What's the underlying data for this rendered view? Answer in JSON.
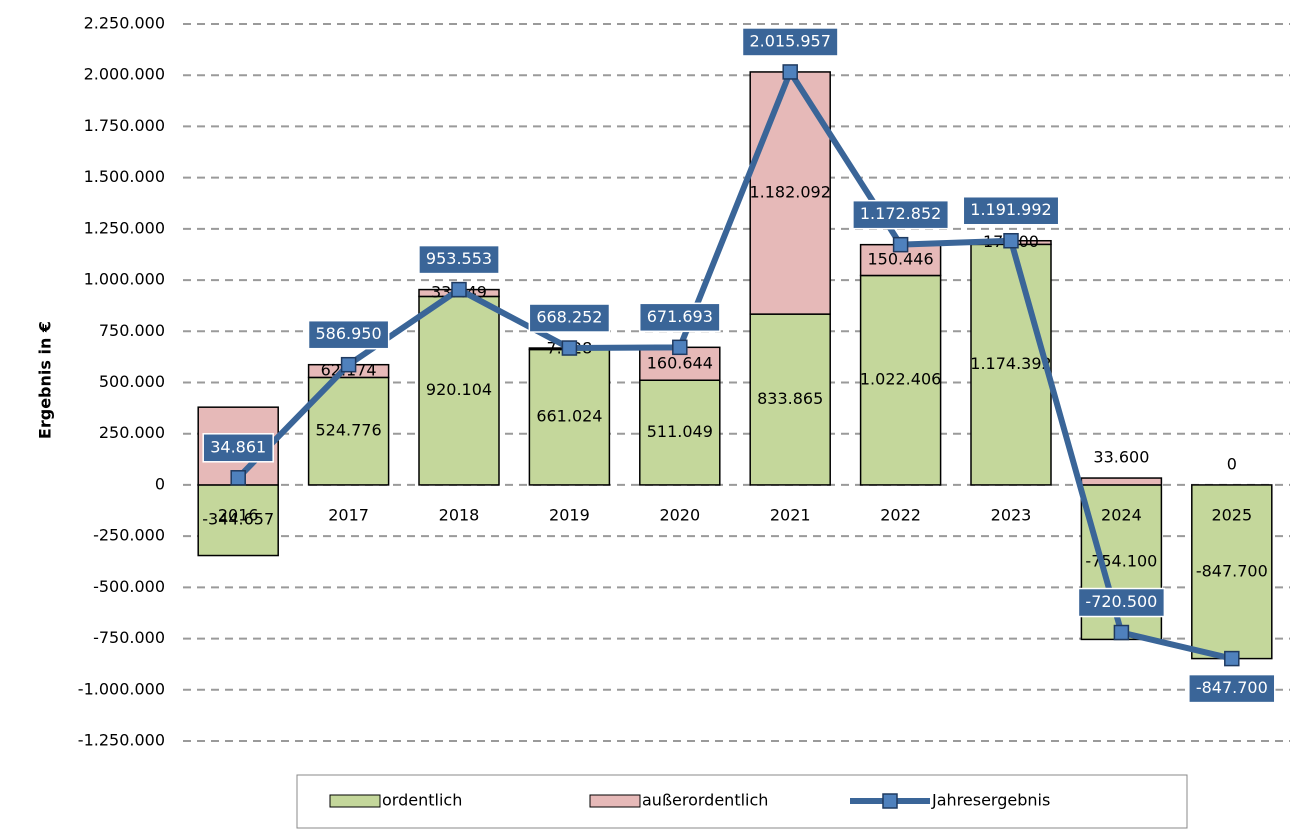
{
  "chart_data": {
    "type": "bar",
    "y_label": "Ergebnis in €",
    "categories": [
      "2016",
      "2017",
      "2018",
      "2019",
      "2020",
      "2021",
      "2022",
      "2023",
      "2024",
      "2025"
    ],
    "series": [
      {
        "name": "ordentlich",
        "type": "bar",
        "color": "#c4d79b",
        "values": [
          -344657,
          524776,
          920104,
          661024,
          511049,
          833865,
          1022406,
          1174392,
          -754100,
          -847700
        ],
        "value_labels": [
          "-344.657",
          "524.776",
          "920.104",
          "661.024",
          "511.049",
          "833.865",
          "1.022.406",
          "1.174.392",
          "-754.100",
          "-847.700"
        ]
      },
      {
        "name": "außerordentlich",
        "type": "bar",
        "color": "#e6b9b8",
        "values": [
          379518,
          62174,
          33449,
          7228,
          160644,
          1182092,
          150446,
          17600,
          33600,
          0
        ],
        "value_labels": [
          null,
          "62.174",
          "33.449",
          "7.228",
          "160.644",
          "1.182.092",
          "150.446",
          "17.600",
          "33.600",
          "0"
        ]
      },
      {
        "name": "Jahresergebnis",
        "type": "line",
        "color": "#3a6598",
        "values": [
          34861,
          586950,
          953553,
          668252,
          671693,
          2015957,
          1172852,
          1191992,
          -720500,
          -847700
        ],
        "value_labels": [
          "34.861",
          "586.950",
          "953.553",
          "668.252",
          "671.693",
          "2.015.957",
          "1.172.852",
          "1.191.992",
          "-720.500",
          "-847.700"
        ]
      }
    ],
    "ylim": [
      -1250000,
      2250000
    ],
    "yticks": [
      {
        "value": -1250000,
        "label": "-1.250.000"
      },
      {
        "value": -1000000,
        "label": "-1.000.000"
      },
      {
        "value": -750000,
        "label": "-750.000"
      },
      {
        "value": -500000,
        "label": "-500.000"
      },
      {
        "value": -250000,
        "label": "-250.000"
      },
      0,
      {
        "value": 250000,
        "label": "250.000"
      },
      {
        "value": 500000,
        "label": "500.000"
      },
      {
        "value": 750000,
        "label": "750.000"
      },
      {
        "value": 1000000,
        "label": "1.000.000"
      },
      {
        "value": 1250000,
        "label": "1.250.000"
      },
      {
        "value": 1500000,
        "label": "1.500.000"
      },
      {
        "value": 1750000,
        "label": "1.750.000"
      },
      {
        "value": 2000000,
        "label": "2.000.000"
      },
      {
        "value": 2250000,
        "label": "2.250.000"
      }
    ],
    "grid": true
  }
}
